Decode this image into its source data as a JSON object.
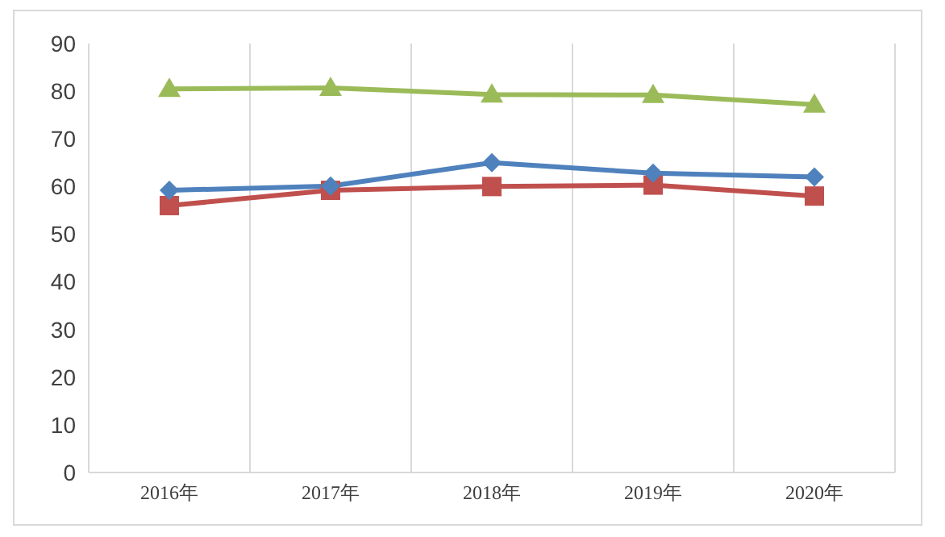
{
  "chart_data": {
    "type": "line",
    "categories": [
      "2016年",
      "2017年",
      "2018年",
      "2019年",
      "2020年"
    ],
    "series": [
      {
        "color": "#4f81bd",
        "marker": "diamond",
        "values": [
          59.2,
          60.1,
          65,
          62.8,
          62
        ]
      },
      {
        "color": "#c0504d",
        "marker": "square",
        "values": [
          56,
          59.2,
          60,
          60.3,
          58
        ]
      },
      {
        "color": "#9bbb59",
        "marker": "triangle",
        "values": [
          80.5,
          80.7,
          79.3,
          79.2,
          77.2
        ]
      }
    ],
    "ylim": [
      0,
      90
    ],
    "yticks": [
      0,
      10,
      20,
      30,
      40,
      50,
      60,
      70,
      80,
      90
    ],
    "grid": "x"
  }
}
